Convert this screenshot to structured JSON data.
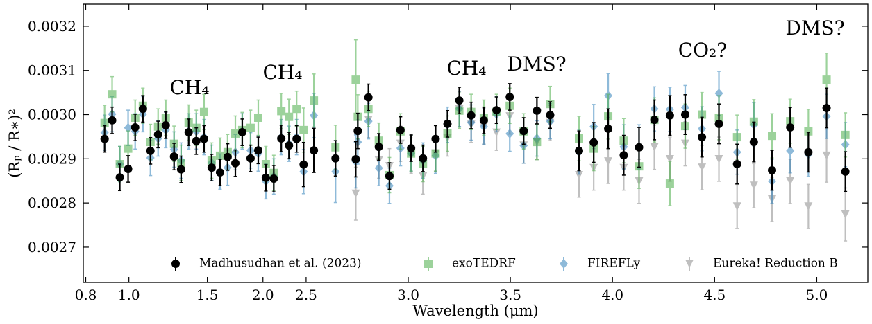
{
  "chart_data": {
    "type": "errorbar-scatter",
    "xlabel": "Wavelength (μm)",
    "ylabel": "(Rₚ / R∗)²",
    "xscale": "log-linear",
    "xbreak": 2.5,
    "xlim": [
      0.79,
      5.25
    ],
    "xticks": [
      0.8,
      {
        "value": 1,
        "label": "1.0"
      },
      1.5,
      {
        "value": 2,
        "label": "2.0"
      },
      2.5,
      {
        "value": 3,
        "label": "3.0"
      },
      3.5,
      {
        "value": 4,
        "label": "4.0"
      },
      4.5,
      {
        "value": 5,
        "label": "5.0"
      }
    ],
    "ylim": [
      0.00262,
      0.00325
    ],
    "yticks": [
      0.0027,
      0.0028,
      0.0029,
      {
        "value": 0.003,
        "label": "0.0030"
      },
      0.0031,
      0.0032
    ],
    "legend": "lower center",
    "annotations": [
      "CH₄",
      "CH₄",
      "CH₄",
      "DMS?",
      "CO₂?",
      "DMS?"
    ],
    "series": [
      {
        "name": "Madhusudhan et al. (2023)",
        "color": "#000000",
        "marker": "circle",
        "x": [
          0.882,
          0.917,
          0.954,
          0.996,
          1.033,
          1.075,
          1.118,
          1.163,
          1.21,
          1.263,
          1.31,
          1.362,
          1.417,
          1.475,
          1.534,
          1.602,
          1.666,
          1.734,
          1.797,
          1.876,
          1.952,
          2.03,
          2.115,
          2.199,
          2.288,
          2.38,
          2.468,
          2.538,
          2.644,
          2.743,
          2.753,
          2.805,
          2.856,
          2.908,
          2.962,
          3.014,
          3.072,
          3.134,
          3.192,
          3.25,
          3.308,
          3.37,
          3.432,
          3.497,
          3.565,
          3.63,
          3.695,
          3.836,
          3.908,
          3.979,
          4.055,
          4.13,
          4.205,
          4.281,
          4.356,
          4.438,
          4.521,
          4.61,
          4.692,
          4.781,
          4.87,
          4.959,
          5.048,
          5.14
        ],
        "values": [
          0.002945,
          0.002987,
          0.002858,
          0.002877,
          0.002971,
          0.003013,
          0.002918,
          0.002955,
          0.002976,
          0.002905,
          0.002876,
          0.00296,
          0.00294,
          0.002945,
          0.00288,
          0.002869,
          0.002904,
          0.00289,
          0.00296,
          0.002901,
          0.002919,
          0.002857,
          0.002855,
          0.002946,
          0.00293,
          0.002945,
          0.002887,
          0.002919,
          0.002901,
          0.002899,
          0.002963,
          0.003039,
          0.002927,
          0.002861,
          0.002965,
          0.002924,
          0.002901,
          0.002945,
          0.002979,
          0.003032,
          0.002998,
          0.002987,
          0.00301,
          0.00304,
          0.002963,
          0.003009,
          0.002999,
          0.002918,
          0.002937,
          0.002968,
          0.002908,
          0.002926,
          0.002988,
          0.002998,
          0.003,
          0.002949,
          0.002979,
          0.002888,
          0.002938,
          0.002874,
          0.002971,
          0.002915,
          0.003015,
          0.002871
        ],
        "errors": [
          3e-05,
          3e-05,
          3e-05,
          3e-05,
          3e-05,
          3e-05,
          3e-05,
          3e-05,
          3e-05,
          3e-05,
          3e-05,
          3e-05,
          3e-05,
          3e-05,
          3e-05,
          3e-05,
          3e-05,
          3e-05,
          3e-05,
          3e-05,
          3e-05,
          3e-05,
          3e-05,
          3e-05,
          3e-05,
          3e-05,
          5e-05,
          5e-05,
          4e-05,
          4e-05,
          4e-05,
          3e-05,
          3e-05,
          3e-05,
          3e-05,
          3e-05,
          3e-05,
          3e-05,
          3e-05,
          3e-05,
          3e-05,
          3e-05,
          3e-05,
          3e-05,
          3e-05,
          3e-05,
          3e-05,
          4.5e-05,
          4.5e-05,
          4.5e-05,
          4.5e-05,
          4.5e-05,
          4.5e-05,
          4.5e-05,
          4.5e-05,
          4.5e-05,
          4.5e-05,
          4.5e-05,
          4.5e-05,
          4.5e-05,
          4.5e-05,
          4.5e-05,
          4.5e-05,
          4.5e-05
        ]
      },
      {
        "name": "exoTEDRF",
        "color": "#4daf4a",
        "marker": "square",
        "x": [
          0.882,
          0.917,
          0.954,
          0.996,
          1.033,
          1.075,
          1.118,
          1.163,
          1.21,
          1.263,
          1.31,
          1.362,
          1.417,
          1.475,
          1.534,
          1.602,
          1.666,
          1.734,
          1.797,
          1.876,
          1.952,
          2.03,
          2.115,
          2.199,
          2.288,
          2.38,
          2.468,
          2.538,
          2.644,
          2.743,
          2.753,
          2.805,
          2.856,
          2.908,
          2.962,
          3.014,
          3.072,
          3.134,
          3.192,
          3.25,
          3.308,
          3.37,
          3.432,
          3.497,
          3.565,
          3.63,
          3.695,
          3.836,
          3.908,
          3.979,
          4.055,
          4.13,
          4.205,
          4.281,
          4.356,
          4.438,
          4.521,
          4.61,
          4.692,
          4.781,
          4.87,
          4.959,
          5.048,
          5.14
        ],
        "values": [
          0.002981,
          0.003046,
          0.002888,
          0.002923,
          0.002993,
          0.00302,
          0.002938,
          0.002973,
          0.002993,
          0.002934,
          0.002891,
          0.002982,
          0.00297,
          0.003006,
          0.002896,
          0.002907,
          0.002915,
          0.002957,
          0.002965,
          0.00297,
          0.002993,
          0.002888,
          0.002868,
          0.003008,
          0.002995,
          0.003013,
          0.002965,
          0.003032,
          0.002926,
          0.003079,
          0.002995,
          0.003013,
          0.002941,
          0.002863,
          0.002962,
          0.002912,
          0.002888,
          0.002912,
          0.002957,
          0.003009,
          0.003006,
          0.002993,
          0.003006,
          0.00302,
          0.002962,
          0.002938,
          0.003024,
          0.002946,
          0.002923,
          0.002996,
          0.002941,
          0.002883,
          0.002988,
          0.002844,
          0.002974,
          0.003,
          0.002993,
          0.002949,
          0.002984,
          0.002952,
          0.002985,
          0.002962,
          0.003079,
          0.002954
        ],
        "errors": [
          4e-05,
          4e-05,
          4e-05,
          4e-05,
          4e-05,
          4e-05,
          4e-05,
          4e-05,
          4e-05,
          4e-05,
          4e-05,
          4e-05,
          4e-05,
          4e-05,
          4e-05,
          4e-05,
          4e-05,
          4e-05,
          4e-05,
          4e-05,
          4e-05,
          4e-05,
          4e-05,
          4e-05,
          4e-05,
          4e-05,
          5e-05,
          6e-05,
          5e-05,
          9e-05,
          5e-05,
          4e-05,
          4e-05,
          4e-05,
          4e-05,
          4e-05,
          4e-05,
          4e-05,
          4e-05,
          4e-05,
          4e-05,
          4e-05,
          4e-05,
          4e-05,
          4e-05,
          4e-05,
          4e-05,
          5e-05,
          5e-05,
          5e-05,
          5e-05,
          5e-05,
          5e-05,
          5e-05,
          5e-05,
          5e-05,
          5e-05,
          5e-05,
          5e-05,
          5e-05,
          5e-05,
          5e-05,
          6e-05,
          5e-05
        ]
      },
      {
        "name": "FIREFLy",
        "color": "#1f77b4",
        "marker": "diamond",
        "x": [
          0.882,
          0.917,
          0.954,
          0.996,
          1.033,
          1.075,
          1.118,
          1.163,
          1.21,
          1.263,
          1.31,
          1.362,
          1.417,
          1.475,
          1.534,
          1.602,
          1.666,
          1.734,
          1.797,
          1.876,
          1.952,
          2.03,
          2.115,
          2.199,
          2.288,
          2.38,
          2.468,
          2.538,
          2.644,
          2.743,
          2.753,
          2.805,
          2.856,
          2.908,
          2.962,
          3.014,
          3.072,
          3.134,
          3.192,
          3.25,
          3.308,
          3.37,
          3.432,
          3.497,
          3.565,
          3.63,
          3.695,
          3.836,
          3.908,
          3.979,
          4.055,
          4.13,
          4.205,
          4.281,
          4.356,
          4.438,
          4.521,
          4.61,
          4.692,
          4.781,
          4.87,
          4.959,
          5.048,
          5.14
        ],
        "values": [
          0.002959,
          0.003001,
          0.002888,
          0.00297,
          0.002962,
          0.003001,
          0.002902,
          0.002946,
          0.002965,
          0.002921,
          0.002896,
          0.002962,
          0.002962,
          0.002949,
          0.002891,
          0.002871,
          0.00288,
          0.002915,
          0.002962,
          0.002919,
          0.002912,
          0.002849,
          0.00286,
          0.002949,
          0.002934,
          0.002949,
          0.002871,
          0.002998,
          0.002871,
          0.002894,
          0.002938,
          0.002985,
          0.002879,
          0.002839,
          0.002924,
          0.002912,
          0.002896,
          0.002907,
          0.002977,
          0.003013,
          0.002982,
          0.002973,
          0.003001,
          0.002957,
          0.00293,
          0.002946,
          0.002985,
          0.002915,
          0.002973,
          0.003043,
          0.002927,
          0.002927,
          0.003013,
          0.003012,
          0.003016,
          0.002968,
          0.003048,
          0.002915,
          0.002977,
          0.002849,
          0.002918,
          0.00291,
          0.002996,
          0.002932
        ],
        "errors": [
          4e-05,
          4e-05,
          4e-05,
          4e-05,
          4e-05,
          4e-05,
          4e-05,
          4e-05,
          4e-05,
          4e-05,
          4e-05,
          4e-05,
          4e-05,
          4e-05,
          4e-05,
          4e-05,
          4e-05,
          4e-05,
          4e-05,
          4e-05,
          4e-05,
          4e-05,
          4e-05,
          4e-05,
          4e-05,
          4e-05,
          5e-05,
          5e-05,
          7e-05,
          6e-05,
          5e-05,
          4e-05,
          4e-05,
          4e-05,
          4e-05,
          4e-05,
          4e-05,
          4e-05,
          4e-05,
          4e-05,
          4e-05,
          4e-05,
          4e-05,
          4e-05,
          4e-05,
          4e-05,
          4e-05,
          5e-05,
          5e-05,
          5e-05,
          5e-05,
          5e-05,
          5e-05,
          5e-05,
          5e-05,
          5e-05,
          5e-05,
          5e-05,
          5e-05,
          5e-05,
          5e-05,
          5e-05,
          5e-05,
          5e-05
        ]
      },
      {
        "name": "Eureka! Reduction B",
        "color": "#808080",
        "marker": "triangle-down",
        "x": [
          2.743,
          2.805,
          2.856,
          2.908,
          2.962,
          3.014,
          3.072,
          3.134,
          3.192,
          3.25,
          3.308,
          3.37,
          3.432,
          3.497,
          3.565,
          3.63,
          3.695,
          3.836,
          3.908,
          3.979,
          4.055,
          4.13,
          4.205,
          4.281,
          4.356,
          4.438,
          4.521,
          4.61,
          4.692,
          4.781,
          4.87,
          4.959,
          5.048,
          5.14
        ],
        "values": [
          0.002821,
          0.002988,
          0.002896,
          0.002883,
          0.002934,
          0.002907,
          0.00286,
          0.002912,
          0.002946,
          0.003012,
          0.002977,
          0.002973,
          0.002959,
          0.002996,
          0.00293,
          0.002938,
          0.002981,
          0.002863,
          0.002879,
          0.002894,
          0.002879,
          0.002849,
          0.002926,
          0.002899,
          0.002934,
          0.00288,
          0.002899,
          0.002792,
          0.002839,
          0.002808,
          0.002849,
          0.002792,
          0.002907,
          0.002774
        ],
        "errors": [
          6e-05,
          4e-05,
          4e-05,
          4e-05,
          4e-05,
          4e-05,
          4e-05,
          4e-05,
          4e-05,
          4e-05,
          4e-05,
          4e-05,
          4e-05,
          4e-05,
          4e-05,
          4e-05,
          4e-05,
          5e-05,
          5e-05,
          5e-05,
          5e-05,
          5e-05,
          5e-05,
          5e-05,
          5e-05,
          5e-05,
          5e-05,
          5e-05,
          5e-05,
          5e-05,
          5e-05,
          5e-05,
          6e-05,
          6e-05
        ]
      }
    ]
  }
}
